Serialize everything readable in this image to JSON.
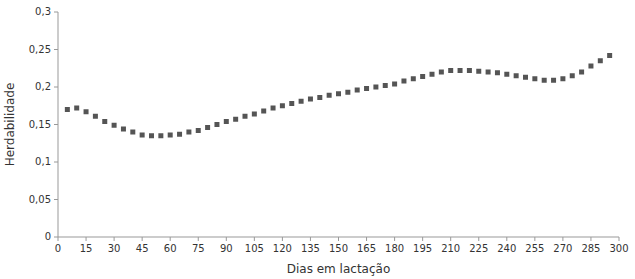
{
  "chart_data": {
    "type": "scatter",
    "x": [
      5,
      10,
      15,
      20,
      25,
      30,
      35,
      40,
      45,
      50,
      55,
      60,
      65,
      70,
      75,
      80,
      85,
      90,
      95,
      100,
      105,
      110,
      115,
      120,
      125,
      130,
      135,
      140,
      145,
      150,
      155,
      160,
      165,
      170,
      175,
      180,
      185,
      190,
      195,
      200,
      205,
      210,
      215,
      220,
      225,
      230,
      235,
      240,
      245,
      250,
      255,
      260,
      265,
      270,
      275,
      280,
      285,
      290,
      295
    ],
    "values": [
      0.17,
      0.172,
      0.167,
      0.161,
      0.154,
      0.149,
      0.144,
      0.14,
      0.136,
      0.135,
      0.135,
      0.136,
      0.137,
      0.14,
      0.142,
      0.146,
      0.15,
      0.154,
      0.157,
      0.161,
      0.164,
      0.168,
      0.172,
      0.175,
      0.178,
      0.181,
      0.184,
      0.186,
      0.189,
      0.191,
      0.193,
      0.196,
      0.198,
      0.2,
      0.202,
      0.204,
      0.208,
      0.211,
      0.214,
      0.217,
      0.22,
      0.222,
      0.222,
      0.222,
      0.221,
      0.22,
      0.219,
      0.217,
      0.215,
      0.213,
      0.211,
      0.209,
      0.209,
      0.211,
      0.215,
      0.22,
      0.228,
      0.235,
      0.242
    ],
    "xlabel": "Dias em lactação",
    "ylabel": "Herdabilidade",
    "xlim": [
      0,
      300
    ],
    "ylim": [
      0,
      0.3
    ],
    "xticks": [
      0,
      15,
      30,
      45,
      60,
      75,
      90,
      105,
      120,
      135,
      150,
      165,
      180,
      195,
      210,
      225,
      240,
      255,
      270,
      285,
      300
    ],
    "yticks": [
      0,
      {
        "value": 0.05,
        "label": "0,05"
      },
      {
        "value": 0.1,
        "label": "0,1"
      },
      {
        "value": 0.15,
        "label": "0,15"
      },
      {
        "value": 0.2,
        "label": "0,2"
      },
      {
        "value": 0.25,
        "label": "0,25"
      },
      {
        "value": 0.3,
        "label": "0,3"
      }
    ],
    "color": "#555555",
    "marker": "square",
    "grid": false
  }
}
